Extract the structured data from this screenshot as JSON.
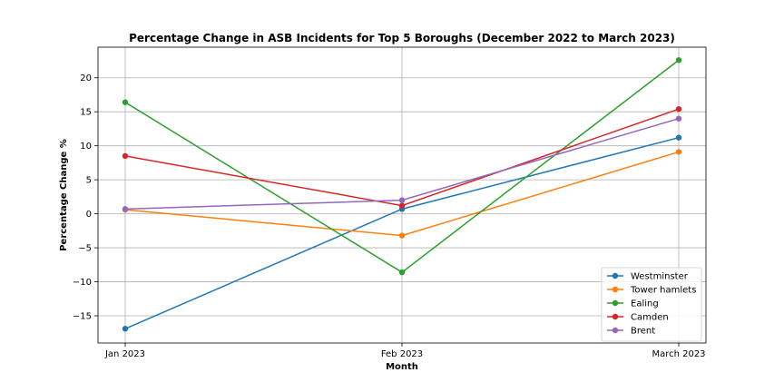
{
  "chart_data": {
    "type": "line",
    "title": "Percentage Change in ASB Incidents for Top 5 Boroughs (December 2022 to March 2023)",
    "xlabel": "Month",
    "ylabel": "Percentage Change %",
    "categories": [
      "Jan 2023",
      "Feb 2023",
      "March 2023"
    ],
    "ylim": [
      -19,
      24.5
    ],
    "yticks": [
      -15,
      -10,
      -5,
      0,
      5,
      10,
      15,
      20
    ],
    "ytick_labels": [
      "−15",
      "−10",
      "−5",
      "0",
      "5",
      "10",
      "15",
      "20"
    ],
    "grid": true,
    "legend_position": "bottom-right",
    "series": [
      {
        "name": "Westminster",
        "color": "#1f77b4",
        "values": [
          -16.9,
          0.7,
          11.2
        ]
      },
      {
        "name": "Tower hamlets",
        "color": "#ff7f0e",
        "values": [
          0.6,
          -3.2,
          9.1
        ]
      },
      {
        "name": "Ealing",
        "color": "#2ca02c",
        "values": [
          16.4,
          -8.6,
          22.6
        ]
      },
      {
        "name": "Camden",
        "color": "#d62728",
        "values": [
          8.5,
          1.2,
          15.4
        ]
      },
      {
        "name": "Brent",
        "color": "#9467bd",
        "values": [
          0.7,
          2.0,
          14.0
        ]
      }
    ]
  }
}
